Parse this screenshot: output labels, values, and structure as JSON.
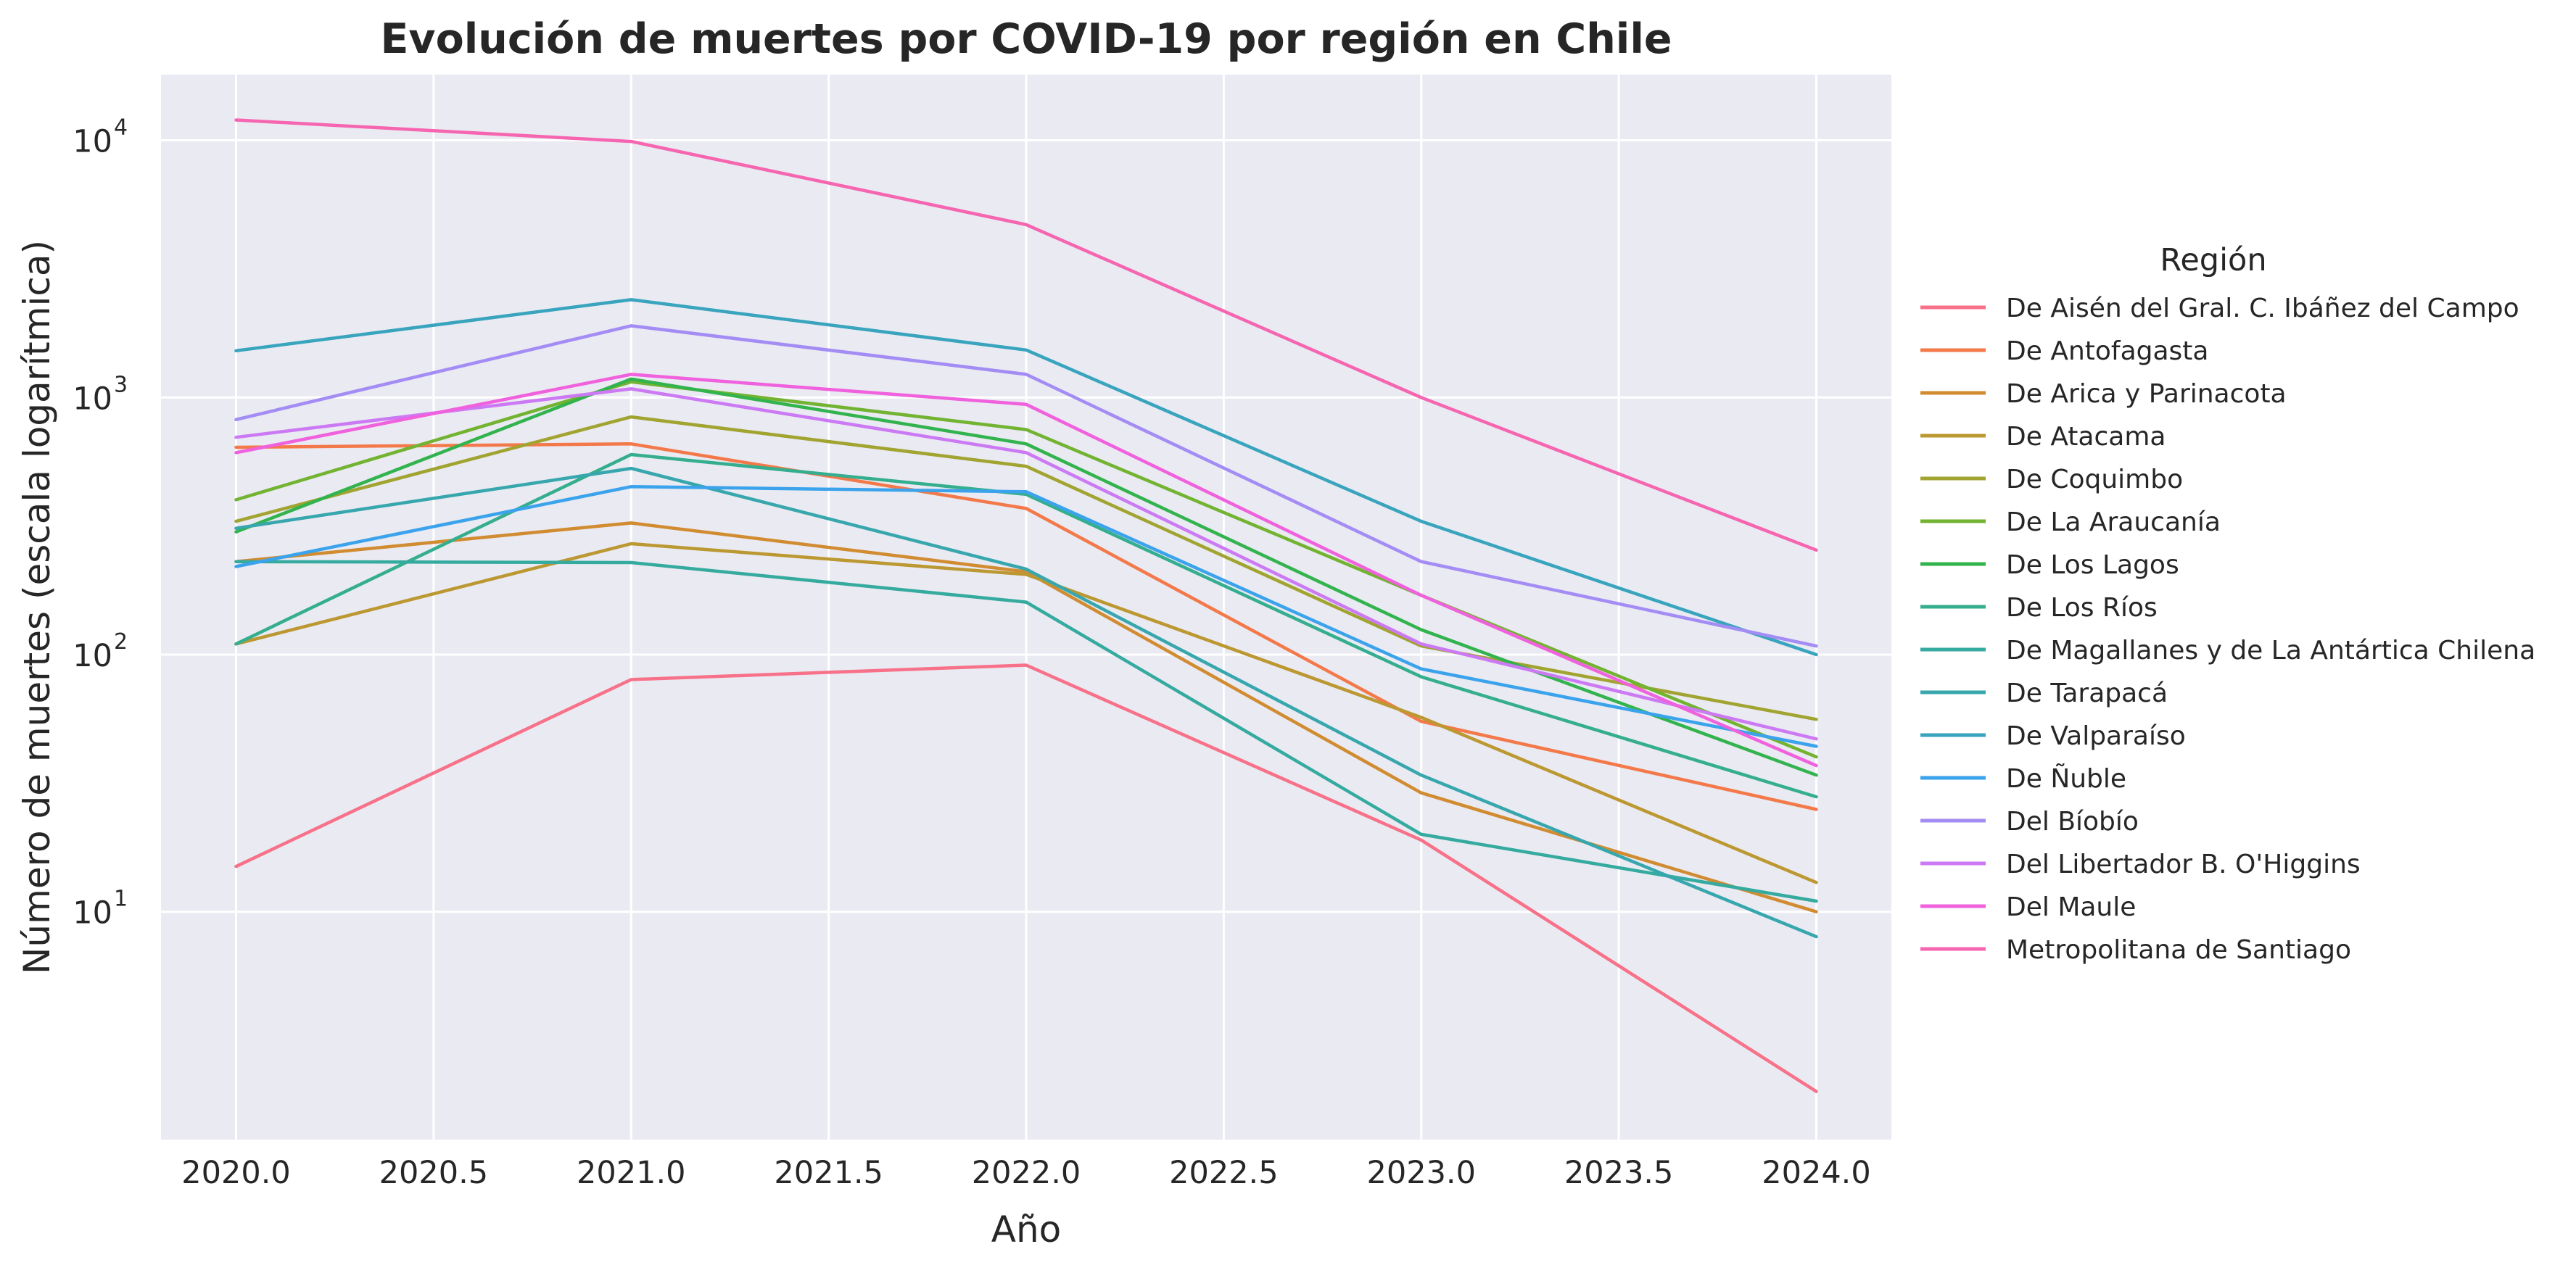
{
  "chart_data": {
    "type": "line",
    "title": "Evolución de muertes por COVID-19 por región en Chile",
    "xlabel": "Año",
    "ylabel": "Número de muertes (escala logarítmica)",
    "yscale": "log",
    "xlim": [
      2019.81,
      2024.19
    ],
    "ylim": [
      1.3,
      18000
    ],
    "xticks": [
      2020.0,
      2020.5,
      2021.0,
      2021.5,
      2022.0,
      2022.5,
      2023.0,
      2023.5,
      2024.0
    ],
    "xtick_labels": [
      "2020.0",
      "2020.5",
      "2021.0",
      "2021.5",
      "2022.0",
      "2022.5",
      "2023.0",
      "2023.5",
      "2024.0"
    ],
    "yticks": [
      10,
      100,
      1000,
      10000
    ],
    "ytick_labels": [
      {
        "base": "10",
        "exp": "1"
      },
      {
        "base": "10",
        "exp": "2"
      },
      {
        "base": "10",
        "exp": "3"
      },
      {
        "base": "10",
        "exp": "4"
      }
    ],
    "grid": true,
    "background": "#eaeaf2",
    "legend_title": "Región",
    "legend_position": "right",
    "x": [
      2020,
      2021,
      2022,
      2023,
      2024
    ],
    "series": [
      {
        "name": "De Aisén del Gral. C. Ibáñez del Campo",
        "color": "#f77189",
        "values": [
          15,
          80,
          91,
          19,
          2
        ]
      },
      {
        "name": "De Antofagasta",
        "color": "#f3794a",
        "values": [
          640,
          660,
          370,
          55,
          25
        ]
      },
      {
        "name": "De Arica y Parinacota",
        "color": "#d18c32",
        "values": [
          230,
          325,
          210,
          29,
          10
        ]
      },
      {
        "name": "De Atacama",
        "color": "#bb9832",
        "values": [
          110,
          270,
          205,
          57,
          13
        ]
      },
      {
        "name": "De Coquimbo",
        "color": "#a1a431",
        "values": [
          330,
          840,
          540,
          108,
          56
        ]
      },
      {
        "name": "De La Araucanía",
        "color": "#73b332",
        "values": [
          400,
          1150,
          750,
          170,
          40
        ]
      },
      {
        "name": "De Los Lagos",
        "color": "#33b34e",
        "values": [
          300,
          1180,
          660,
          125,
          34
        ]
      },
      {
        "name": "De Los Ríos",
        "color": "#34ae8e",
        "values": [
          110,
          600,
          420,
          82,
          28
        ]
      },
      {
        "name": "De Magallanes y de La Antártica Chilena",
        "color": "#35aa9f",
        "values": [
          230,
          228,
          160,
          20,
          11
        ]
      },
      {
        "name": "De Tarapacá",
        "color": "#37a7ad",
        "values": [
          310,
          530,
          215,
          34,
          8
        ]
      },
      {
        "name": "De Valparaíso",
        "color": "#38a4bd",
        "values": [
          1520,
          2400,
          1530,
          330,
          100
        ]
      },
      {
        "name": "De Ñuble",
        "color": "#3ba3ec",
        "values": [
          220,
          450,
          430,
          88,
          44
        ]
      },
      {
        "name": "Del Bíobío",
        "color": "#a38cf4",
        "values": [
          820,
          1900,
          1230,
          230,
          108
        ]
      },
      {
        "name": "Del Libertador B. O'Higgins",
        "color": "#cc79f4",
        "values": [
          700,
          1080,
          610,
          110,
          47
        ]
      },
      {
        "name": "Del Maule",
        "color": "#f061dd",
        "values": [
          610,
          1230,
          940,
          170,
          37
        ]
      },
      {
        "name": "Metropolitana de Santiago",
        "color": "#f565b0",
        "values": [
          12000,
          9900,
          4700,
          1000,
          255
        ]
      }
    ]
  }
}
